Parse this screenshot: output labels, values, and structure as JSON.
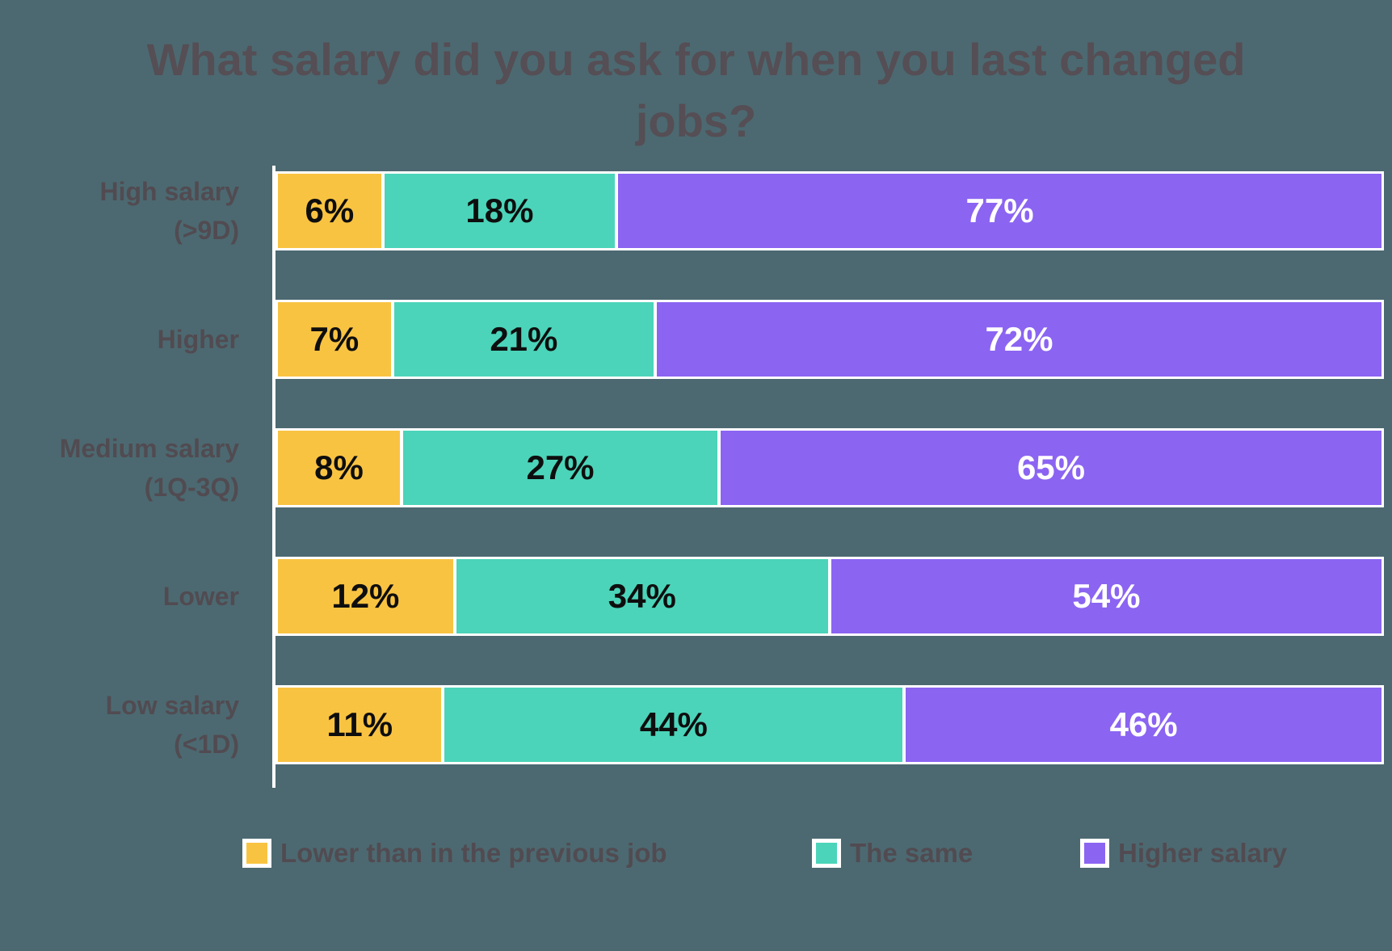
{
  "title": "What salary did you ask for when you last changed jobs?",
  "colors": {
    "background": "#4C6971",
    "axis_line": "#FFFFFF",
    "title_text": "#554E54",
    "category_text": "#514B51",
    "legend_text": "#514B51",
    "value_on_light": "#0E0E0E",
    "value_on_dark": "#FFFFFF"
  },
  "chart_data": {
    "type": "bar",
    "orientation": "horizontal",
    "stacked": true,
    "percent_stacked": true,
    "title": "What salary did you ask for when you last changed jobs?",
    "categories": [
      "High salary\n(>9D)",
      "Higher",
      "Medium salary\n(1Q-3Q)",
      "Lower",
      "Low salary\n(<1D)"
    ],
    "series": [
      {
        "key": "lower",
        "name": "Lower than in the previous job",
        "color": "#F9C342",
        "text_color": "#0E0E0E",
        "values": [
          6,
          7,
          8,
          12,
          11
        ]
      },
      {
        "key": "same",
        "name": "The same",
        "color": "#4BD4B9",
        "text_color": "#0E0E0E",
        "values": [
          18,
          21,
          27,
          34,
          44
        ]
      },
      {
        "key": "higher",
        "name": "Higher salary",
        "color": "#8B64F2",
        "text_color": "#FFFFFF",
        "values": [
          77,
          72,
          65,
          54,
          46
        ]
      }
    ],
    "value_suffix": "%",
    "axis_range": [
      0,
      100
    ],
    "gridlines": false,
    "legend_position": "bottom"
  },
  "legend": {
    "items": [
      {
        "key": "lower",
        "label": "Lower than in the previous job",
        "color": "#F9C342"
      },
      {
        "key": "same",
        "label": "The same",
        "color": "#4BD4B9"
      },
      {
        "key": "higher",
        "label": "Higher salary",
        "color": "#8B64F2"
      }
    ]
  }
}
